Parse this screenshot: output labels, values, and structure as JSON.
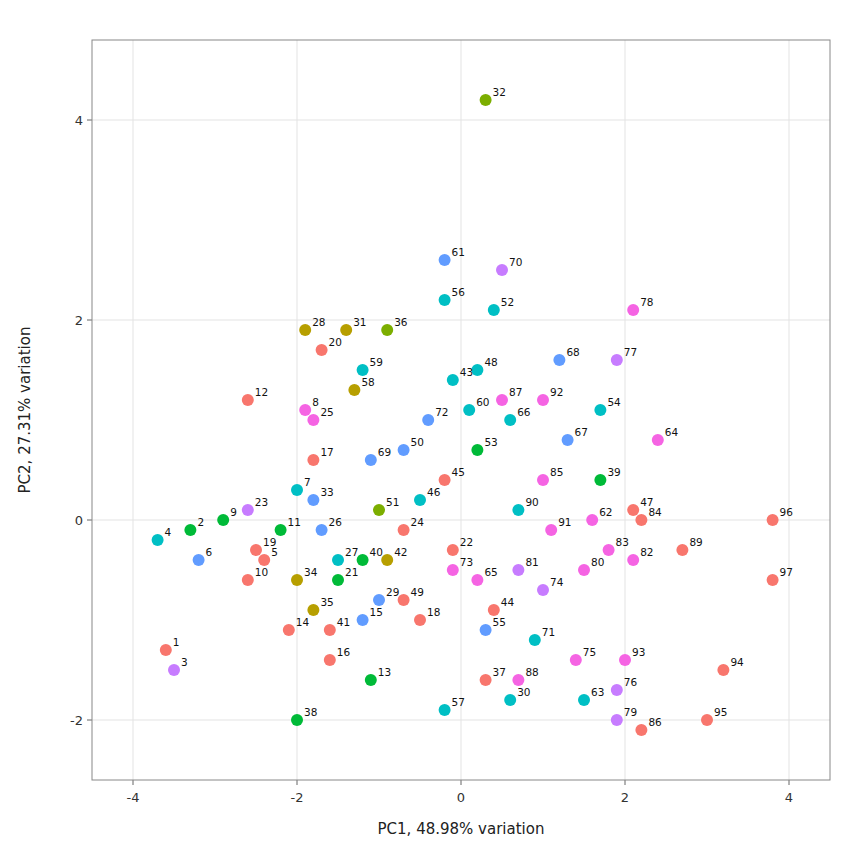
{
  "chart_data": {
    "type": "scatter",
    "xlabel": "PC1, 48.98% variation",
    "ylabel": "PC2, 27.31% variation",
    "xlim": [
      -4.5,
      4.5
    ],
    "ylim": [
      -2.6,
      4.8
    ],
    "xticks": [
      -4,
      -2,
      0,
      2,
      4
    ],
    "yticks": [
      -2,
      0,
      2,
      4
    ],
    "grid": true,
    "x": [
      -3.6,
      -3.3,
      -3.5,
      -3.7,
      -2.4,
      -3.2,
      -2.0,
      -1.9,
      -2.9,
      -2.6,
      -2.2,
      -2.6,
      -1.1,
      -2.1,
      -1.2,
      -1.6,
      -1.8,
      -0.5,
      -2.5,
      -1.7,
      -1.5,
      -0.1,
      -2.6,
      -0.7,
      -1.8,
      -1.7,
      -1.5,
      -1.9,
      -1.0,
      0.6,
      -1.4,
      0.3,
      -1.8,
      -2.0,
      -1.8,
      -0.9,
      0.3,
      -2.0,
      1.7,
      -1.2,
      -1.6,
      -0.9,
      -0.1,
      0.4,
      -0.2,
      -0.5,
      2.1,
      0.2,
      -0.7,
      -0.7,
      -1.0,
      0.4,
      0.2,
      1.7,
      0.3,
      -0.2,
      -0.2,
      -1.3,
      -1.2,
      0.1,
      -0.2,
      1.6,
      1.5,
      2.4,
      0.2,
      0.6,
      1.3,
      1.2,
      -1.1,
      0.5,
      0.9,
      -0.4,
      -0.1,
      1.0,
      1.4,
      1.9,
      1.9,
      2.1,
      1.9,
      1.5,
      0.7,
      2.1,
      1.8,
      2.2,
      1.0,
      2.2,
      0.5,
      0.7,
      2.7,
      0.7,
      1.1,
      1.0,
      2.0,
      3.2,
      3.0,
      3.8,
      3.8
    ],
    "values": [
      -1.3,
      -0.1,
      -1.5,
      -0.2,
      -0.4,
      -0.4,
      0.3,
      1.1,
      0.0,
      -0.6,
      -0.1,
      1.2,
      -1.6,
      -1.1,
      -1.0,
      -1.4,
      0.6,
      -1.0,
      -0.3,
      1.7,
      -0.6,
      -0.3,
      0.1,
      -0.1,
      1.0,
      -0.1,
      -0.4,
      1.9,
      -0.8,
      -1.8,
      1.9,
      4.2,
      0.2,
      -0.6,
      -0.9,
      1.9,
      -1.6,
      -2.0,
      0.4,
      -0.4,
      -1.1,
      -0.4,
      1.4,
      -0.9,
      0.4,
      0.2,
      0.1,
      1.5,
      -0.8,
      0.7,
      0.1,
      2.1,
      0.7,
      1.1,
      -1.1,
      2.2,
      -1.9,
      1.3,
      1.5,
      1.1,
      2.6,
      0.0,
      -1.8,
      0.8,
      -0.6,
      1.0,
      0.8,
      1.6,
      0.6,
      2.5,
      -1.2,
      1.0,
      -0.5,
      -0.7,
      -1.4,
      -1.7,
      1.6,
      2.1,
      -2.0,
      -0.5,
      -0.5,
      -0.4,
      -0.3,
      0.0,
      0.4,
      -2.1,
      1.2,
      -1.6,
      -0.3,
      0.1,
      -0.1,
      1.2,
      -1.4,
      -1.5,
      -2.0,
      0.0,
      -0.6
    ],
    "colors": [
      "#F8766D",
      "#00BA38",
      "#C77CFF",
      "#00BFC4",
      "#F8766D",
      "#619CFF",
      "#00BFC4",
      "#F564E3",
      "#00BA38",
      "#F8766D",
      "#00BA38",
      "#F8766D",
      "#00BA38",
      "#F8766D",
      "#619CFF",
      "#F8766D",
      "#F8766D",
      "#F8766D",
      "#F8766D",
      "#F8766D",
      "#00BA38",
      "#F8766D",
      "#C77CFF",
      "#F8766D",
      "#F564E3",
      "#619CFF",
      "#00BFC4",
      "#B79F00",
      "#619CFF",
      "#00BFC4",
      "#B79F00",
      "#7CAE00",
      "#619CFF",
      "#B79F00",
      "#B79F00",
      "#7CAE00",
      "#F8766D",
      "#00BA38",
      "#00BA38",
      "#00BA38",
      "#F8766D",
      "#B79F00",
      "#00BFC4",
      "#F8766D",
      "#F8766D",
      "#00BFC4",
      "#F8766D",
      "#00BFC4",
      "#F8766D",
      "#619CFF",
      "#7CAE00",
      "#00BFC4",
      "#00BA38",
      "#00BFC4",
      "#619CFF",
      "#00BFC4",
      "#00BFC4",
      "#B79F00",
      "#00BFC4",
      "#00BFC4",
      "#619CFF",
      "#F564E3",
      "#00BFC4",
      "#F564E3",
      "#F564E3",
      "#00BFC4",
      "#619CFF",
      "#619CFF",
      "#619CFF",
      "#C77CFF",
      "#00BFC4",
      "#619CFF",
      "#F564E3",
      "#C77CFF",
      "#F564E3",
      "#C77CFF",
      "#C77CFF",
      "#F564E3",
      "#C77CFF",
      "#F564E3",
      "#C77CFF",
      "#F564E3",
      "#F564E3",
      "#F8766D",
      "#F564E3",
      "#F8766D",
      "#F564E3",
      "#F564E3",
      "#F8766D",
      "#00BFC4",
      "#F564E3",
      "#F564E3",
      "#F564E3",
      "#F8766D",
      "#F8766D",
      "#F8766D",
      "#F8766D"
    ],
    "annotations": [
      "1",
      "2",
      "3",
      "4",
      "5",
      "6",
      "7",
      "8",
      "9",
      "10",
      "11",
      "12",
      "13",
      "14",
      "15",
      "16",
      "17",
      "18",
      "19",
      "20",
      "21",
      "22",
      "23",
      "24",
      "25",
      "26",
      "27",
      "28",
      "29",
      "30",
      "31",
      "32",
      "33",
      "34",
      "35",
      "36",
      "37",
      "38",
      "39",
      "40",
      "41",
      "42",
      "43",
      "44",
      "45",
      "46",
      "47",
      "48",
      "49",
      "50",
      "51",
      "52",
      "53",
      "54",
      "55",
      "56",
      "57",
      "58",
      "59",
      "60",
      "61",
      "62",
      "63",
      "64",
      "65",
      "66",
      "67",
      "68",
      "69",
      "70",
      "71",
      "72",
      "73",
      "74",
      "75",
      "76",
      "77",
      "78",
      "79",
      "80",
      "81",
      "82",
      "83",
      "84",
      "85",
      "86",
      "87",
      "88",
      "89",
      "90",
      "91",
      "92",
      "93",
      "94",
      "95",
      "96",
      "97"
    ]
  }
}
